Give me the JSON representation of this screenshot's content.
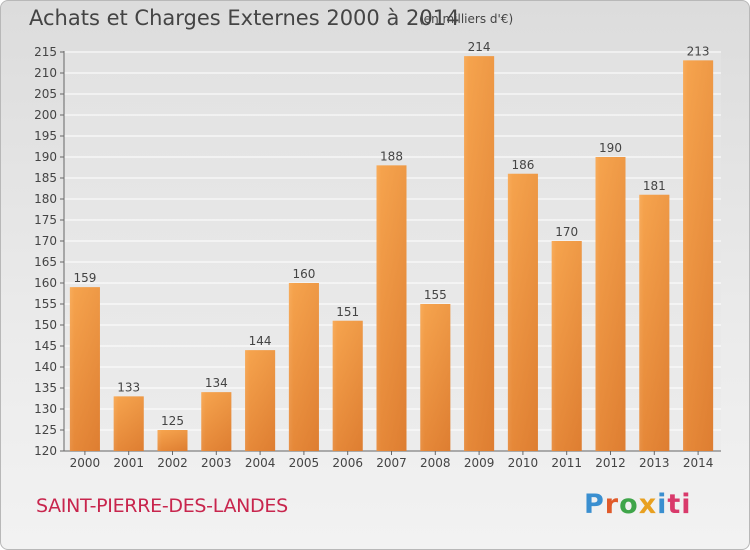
{
  "header": {
    "title": "Achats et Charges Externes 2000 à 2014",
    "subtitle": "(en milliers d'€)"
  },
  "footer": {
    "place_name": "SAINT-PIERRE-DES-LANDES",
    "logo": {
      "text": "Proxiti",
      "letters": [
        "P",
        "r",
        "o",
        "x",
        "i",
        "ti"
      ]
    }
  },
  "colors": {
    "bar": "#f4a04a",
    "bar_dark": "#d9742a",
    "place": "#c8254d"
  },
  "chart_data": {
    "type": "bar",
    "title": "Achats et Charges Externes 2000 à 2014",
    "categories": [
      "2000",
      "2001",
      "2002",
      "2003",
      "2004",
      "2005",
      "2006",
      "2007",
      "2008",
      "2009",
      "2010",
      "2011",
      "2012",
      "2013",
      "2014"
    ],
    "values": [
      159,
      133,
      125,
      134,
      144,
      160,
      151,
      188,
      155,
      214,
      186,
      170,
      190,
      181,
      213
    ],
    "data_labels": [
      "159",
      "133",
      "125",
      "134",
      "144",
      "160",
      "151",
      "188",
      "155",
      "214",
      "186",
      "170",
      "190",
      "181",
      "213"
    ],
    "yticks": [
      "120",
      "125",
      "130",
      "135",
      "140",
      "145",
      "150",
      "155",
      "160",
      "165",
      "170",
      "175",
      "180",
      "185",
      "190",
      "195",
      "200",
      "205",
      "210",
      "215"
    ],
    "ylim": [
      120,
      215
    ],
    "grid": true,
    "xlabel": "",
    "ylabel": ""
  }
}
